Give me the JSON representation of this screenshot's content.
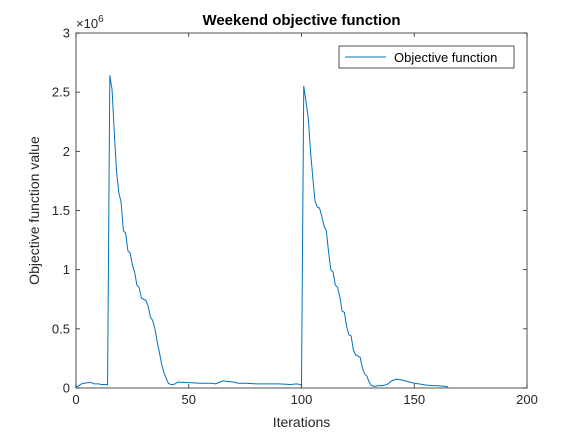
{
  "chart_data": {
    "type": "line",
    "title": "Weekend objective function",
    "xlabel": "Iterations",
    "ylabel": "Objective function value",
    "xlim": [
      0,
      200
    ],
    "ylim": [
      0,
      3000000
    ],
    "xticks": [
      0,
      50,
      100,
      150,
      200
    ],
    "yticks": [
      0,
      500000,
      1000000,
      1500000,
      2000000,
      2500000,
      3000000
    ],
    "xtick_labels": [
      "0",
      "50",
      "100",
      "150",
      "200"
    ],
    "ytick_labels": [
      "0",
      "0.5",
      "1",
      "1.5",
      "2",
      "2.5",
      "3"
    ],
    "y_exponent": {
      "base": "×10",
      "power": "6"
    },
    "grid": false,
    "legend_position": "top-right",
    "color": "#0072bd",
    "series": [
      {
        "name": "Objective function",
        "x": [
          0,
          1,
          2,
          3,
          4,
          5,
          6,
          7,
          8,
          9,
          10,
          11,
          12,
          13,
          14,
          15,
          16,
          17,
          18,
          19,
          20,
          21,
          22,
          23,
          24,
          25,
          26,
          27,
          28,
          29,
          30,
          31,
          32,
          33,
          34,
          35,
          36,
          37,
          38,
          39,
          40,
          41,
          42,
          43,
          44,
          45,
          50,
          55,
          60,
          62,
          65,
          70,
          72,
          75,
          80,
          85,
          90,
          95,
          98,
          99,
          100,
          101,
          102,
          103,
          104,
          105,
          106,
          107,
          108,
          109,
          110,
          111,
          112,
          113,
          114,
          115,
          116,
          117,
          118,
          119,
          120,
          121,
          122,
          123,
          124,
          125,
          126,
          127,
          128,
          129,
          130,
          131,
          132,
          133,
          134,
          136,
          138,
          140,
          142,
          144,
          146,
          148,
          150,
          152,
          155,
          158,
          160,
          163,
          165
        ],
        "y": [
          10000,
          15000,
          30000,
          40000,
          40000,
          45000,
          45000,
          45000,
          35000,
          35000,
          35000,
          30000,
          30000,
          30000,
          25000,
          2640000,
          2520000,
          2150000,
          1820000,
          1650000,
          1570000,
          1330000,
          1310000,
          1160000,
          1140000,
          1040000,
          980000,
          870000,
          850000,
          760000,
          750000,
          740000,
          690000,
          600000,
          570000,
          500000,
          390000,
          300000,
          200000,
          130000,
          80000,
          40000,
          30000,
          30000,
          35000,
          50000,
          45000,
          40000,
          40000,
          35000,
          60000,
          50000,
          40000,
          40000,
          35000,
          35000,
          35000,
          30000,
          35000,
          30000,
          25000,
          2550000,
          2420000,
          2280000,
          2000000,
          1780000,
          1580000,
          1530000,
          1520000,
          1450000,
          1370000,
          1330000,
          1150000,
          1000000,
          980000,
          870000,
          850000,
          770000,
          650000,
          640000,
          520000,
          450000,
          440000,
          320000,
          280000,
          270000,
          260000,
          170000,
          120000,
          100000,
          50000,
          20000,
          15000,
          15000,
          20000,
          20000,
          30000,
          60000,
          75000,
          70000,
          60000,
          50000,
          40000,
          35000,
          25000,
          20000,
          20000,
          15000,
          10000
        ]
      }
    ]
  }
}
